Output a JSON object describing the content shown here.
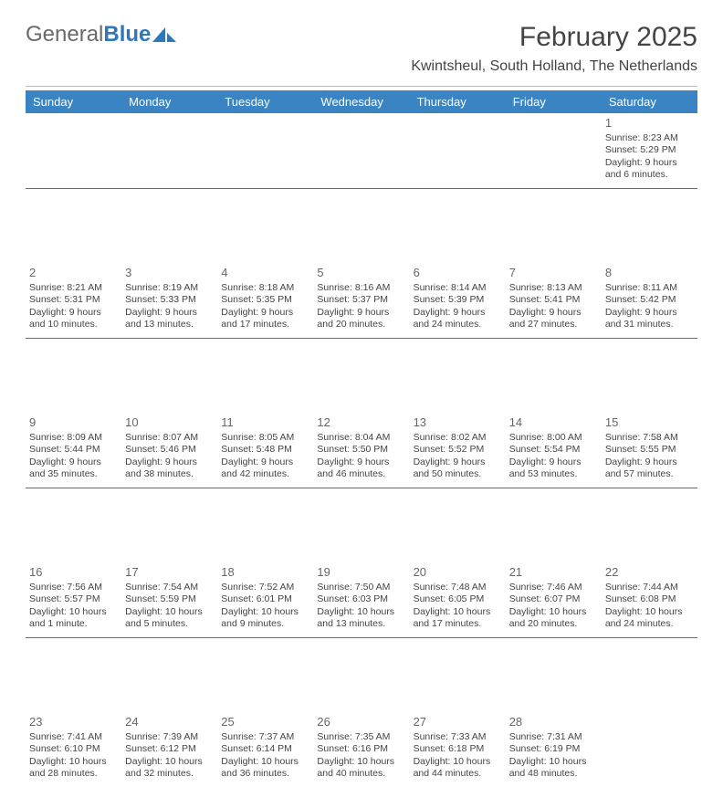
{
  "logo": {
    "text1": "General",
    "text2": "Blue"
  },
  "header": {
    "title": "February 2025",
    "subtitle": "Kwintsheul, South Holland, The Netherlands"
  },
  "colors": {
    "header_bg": "#3a84c4",
    "header_text": "#ffffff",
    "logo_gray": "#6a6a6a",
    "logo_blue": "#2f77b9",
    "divider": "#bbbbbb",
    "body_text": "#444444"
  },
  "day_headers": [
    "Sunday",
    "Monday",
    "Tuesday",
    "Wednesday",
    "Thursday",
    "Friday",
    "Saturday"
  ],
  "weeks": [
    [
      null,
      null,
      null,
      null,
      null,
      null,
      {
        "n": "1",
        "sr": "Sunrise: 8:23 AM",
        "ss": "Sunset: 5:29 PM",
        "d1": "Daylight: 9 hours",
        "d2": "and 6 minutes."
      }
    ],
    [
      {
        "n": "2",
        "sr": "Sunrise: 8:21 AM",
        "ss": "Sunset: 5:31 PM",
        "d1": "Daylight: 9 hours",
        "d2": "and 10 minutes."
      },
      {
        "n": "3",
        "sr": "Sunrise: 8:19 AM",
        "ss": "Sunset: 5:33 PM",
        "d1": "Daylight: 9 hours",
        "d2": "and 13 minutes."
      },
      {
        "n": "4",
        "sr": "Sunrise: 8:18 AM",
        "ss": "Sunset: 5:35 PM",
        "d1": "Daylight: 9 hours",
        "d2": "and 17 minutes."
      },
      {
        "n": "5",
        "sr": "Sunrise: 8:16 AM",
        "ss": "Sunset: 5:37 PM",
        "d1": "Daylight: 9 hours",
        "d2": "and 20 minutes."
      },
      {
        "n": "6",
        "sr": "Sunrise: 8:14 AM",
        "ss": "Sunset: 5:39 PM",
        "d1": "Daylight: 9 hours",
        "d2": "and 24 minutes."
      },
      {
        "n": "7",
        "sr": "Sunrise: 8:13 AM",
        "ss": "Sunset: 5:41 PM",
        "d1": "Daylight: 9 hours",
        "d2": "and 27 minutes."
      },
      {
        "n": "8",
        "sr": "Sunrise: 8:11 AM",
        "ss": "Sunset: 5:42 PM",
        "d1": "Daylight: 9 hours",
        "d2": "and 31 minutes."
      }
    ],
    [
      {
        "n": "9",
        "sr": "Sunrise: 8:09 AM",
        "ss": "Sunset: 5:44 PM",
        "d1": "Daylight: 9 hours",
        "d2": "and 35 minutes."
      },
      {
        "n": "10",
        "sr": "Sunrise: 8:07 AM",
        "ss": "Sunset: 5:46 PM",
        "d1": "Daylight: 9 hours",
        "d2": "and 38 minutes."
      },
      {
        "n": "11",
        "sr": "Sunrise: 8:05 AM",
        "ss": "Sunset: 5:48 PM",
        "d1": "Daylight: 9 hours",
        "d2": "and 42 minutes."
      },
      {
        "n": "12",
        "sr": "Sunrise: 8:04 AM",
        "ss": "Sunset: 5:50 PM",
        "d1": "Daylight: 9 hours",
        "d2": "and 46 minutes."
      },
      {
        "n": "13",
        "sr": "Sunrise: 8:02 AM",
        "ss": "Sunset: 5:52 PM",
        "d1": "Daylight: 9 hours",
        "d2": "and 50 minutes."
      },
      {
        "n": "14",
        "sr": "Sunrise: 8:00 AM",
        "ss": "Sunset: 5:54 PM",
        "d1": "Daylight: 9 hours",
        "d2": "and 53 minutes."
      },
      {
        "n": "15",
        "sr": "Sunrise: 7:58 AM",
        "ss": "Sunset: 5:55 PM",
        "d1": "Daylight: 9 hours",
        "d2": "and 57 minutes."
      }
    ],
    [
      {
        "n": "16",
        "sr": "Sunrise: 7:56 AM",
        "ss": "Sunset: 5:57 PM",
        "d1": "Daylight: 10 hours",
        "d2": "and 1 minute."
      },
      {
        "n": "17",
        "sr": "Sunrise: 7:54 AM",
        "ss": "Sunset: 5:59 PM",
        "d1": "Daylight: 10 hours",
        "d2": "and 5 minutes."
      },
      {
        "n": "18",
        "sr": "Sunrise: 7:52 AM",
        "ss": "Sunset: 6:01 PM",
        "d1": "Daylight: 10 hours",
        "d2": "and 9 minutes."
      },
      {
        "n": "19",
        "sr": "Sunrise: 7:50 AM",
        "ss": "Sunset: 6:03 PM",
        "d1": "Daylight: 10 hours",
        "d2": "and 13 minutes."
      },
      {
        "n": "20",
        "sr": "Sunrise: 7:48 AM",
        "ss": "Sunset: 6:05 PM",
        "d1": "Daylight: 10 hours",
        "d2": "and 17 minutes."
      },
      {
        "n": "21",
        "sr": "Sunrise: 7:46 AM",
        "ss": "Sunset: 6:07 PM",
        "d1": "Daylight: 10 hours",
        "d2": "and 20 minutes."
      },
      {
        "n": "22",
        "sr": "Sunrise: 7:44 AM",
        "ss": "Sunset: 6:08 PM",
        "d1": "Daylight: 10 hours",
        "d2": "and 24 minutes."
      }
    ],
    [
      {
        "n": "23",
        "sr": "Sunrise: 7:41 AM",
        "ss": "Sunset: 6:10 PM",
        "d1": "Daylight: 10 hours",
        "d2": "and 28 minutes."
      },
      {
        "n": "24",
        "sr": "Sunrise: 7:39 AM",
        "ss": "Sunset: 6:12 PM",
        "d1": "Daylight: 10 hours",
        "d2": "and 32 minutes."
      },
      {
        "n": "25",
        "sr": "Sunrise: 7:37 AM",
        "ss": "Sunset: 6:14 PM",
        "d1": "Daylight: 10 hours",
        "d2": "and 36 minutes."
      },
      {
        "n": "26",
        "sr": "Sunrise: 7:35 AM",
        "ss": "Sunset: 6:16 PM",
        "d1": "Daylight: 10 hours",
        "d2": "and 40 minutes."
      },
      {
        "n": "27",
        "sr": "Sunrise: 7:33 AM",
        "ss": "Sunset: 6:18 PM",
        "d1": "Daylight: 10 hours",
        "d2": "and 44 minutes."
      },
      {
        "n": "28",
        "sr": "Sunrise: 7:31 AM",
        "ss": "Sunset: 6:19 PM",
        "d1": "Daylight: 10 hours",
        "d2": "and 48 minutes."
      },
      null
    ]
  ]
}
